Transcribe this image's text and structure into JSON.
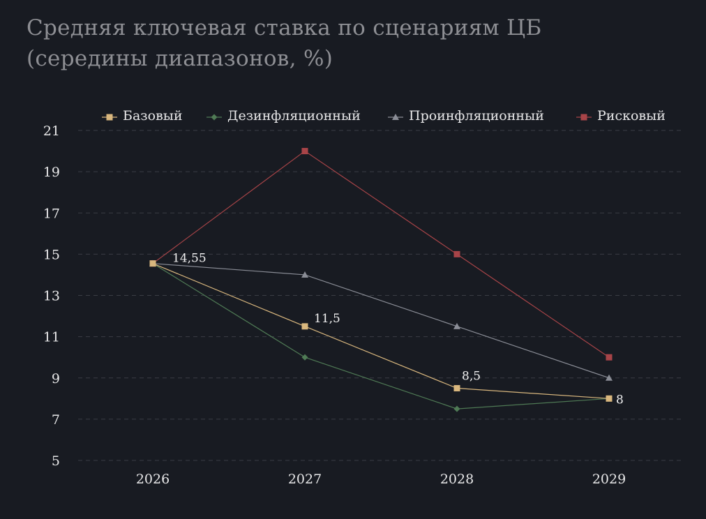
{
  "title": {
    "line1": "Средняя ключевая ставка по сценариям ЦБ",
    "line2": "(середины диапазонов, %)"
  },
  "chart_data": {
    "type": "line",
    "categories": [
      "2026",
      "2027",
      "2028",
      "2029"
    ],
    "ylim": [
      5,
      21
    ],
    "yticks": [
      5,
      7,
      9,
      11,
      13,
      15,
      17,
      19,
      21
    ],
    "grid": true,
    "legend_position": "top",
    "series": [
      {
        "name": "Базовый",
        "values": [
          14.55,
          11.5,
          8.5,
          8
        ],
        "color": "#d9b77e",
        "marker": "square",
        "labels": [
          "14,55",
          "11,5",
          "8,5",
          "8"
        ]
      },
      {
        "name": "Дезинфляционный",
        "values": [
          14.55,
          10,
          7.5,
          8
        ],
        "color": "#4f7a55",
        "marker": "diamond"
      },
      {
        "name": "Проинфляционный",
        "values": [
          14.55,
          14,
          11.5,
          9
        ],
        "color": "#8a8d96",
        "marker": "triangle"
      },
      {
        "name": "Рисковый",
        "values": [
          14.55,
          20,
          15,
          10
        ],
        "color": "#a84448",
        "marker": "square"
      }
    ]
  }
}
